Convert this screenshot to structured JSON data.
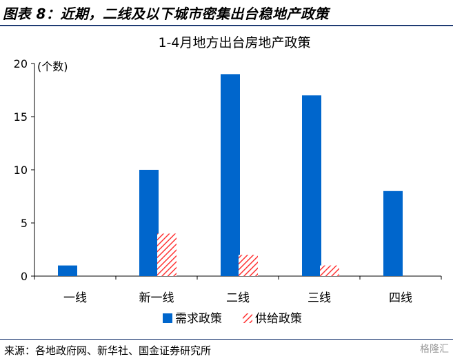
{
  "figure_title": "图表 8：近期，二线及以下城市密集出台稳地产政策",
  "source_note": "来源：各地政府网、新华社、国金证券研究所",
  "watermark": "格隆汇",
  "chart_data": {
    "type": "bar",
    "title": "1-4月地方出台房地产政策",
    "ylabel": "(个数)",
    "xlabel": "",
    "categories": [
      "一线",
      "新一线",
      "二线",
      "三线",
      "四线"
    ],
    "series": [
      {
        "name": "需求政策",
        "values": [
          1,
          10,
          19,
          17,
          8
        ],
        "color": "#0066cc",
        "pattern": "solid"
      },
      {
        "name": "供给政策",
        "values": [
          0,
          4,
          2,
          1,
          0
        ],
        "color": "#ff3333",
        "pattern": "diagonal-hatch"
      }
    ],
    "ylim": [
      0,
      20
    ],
    "yticks": [
      0,
      5,
      10,
      15,
      20
    ],
    "grid": false,
    "legend_position": "bottom"
  }
}
